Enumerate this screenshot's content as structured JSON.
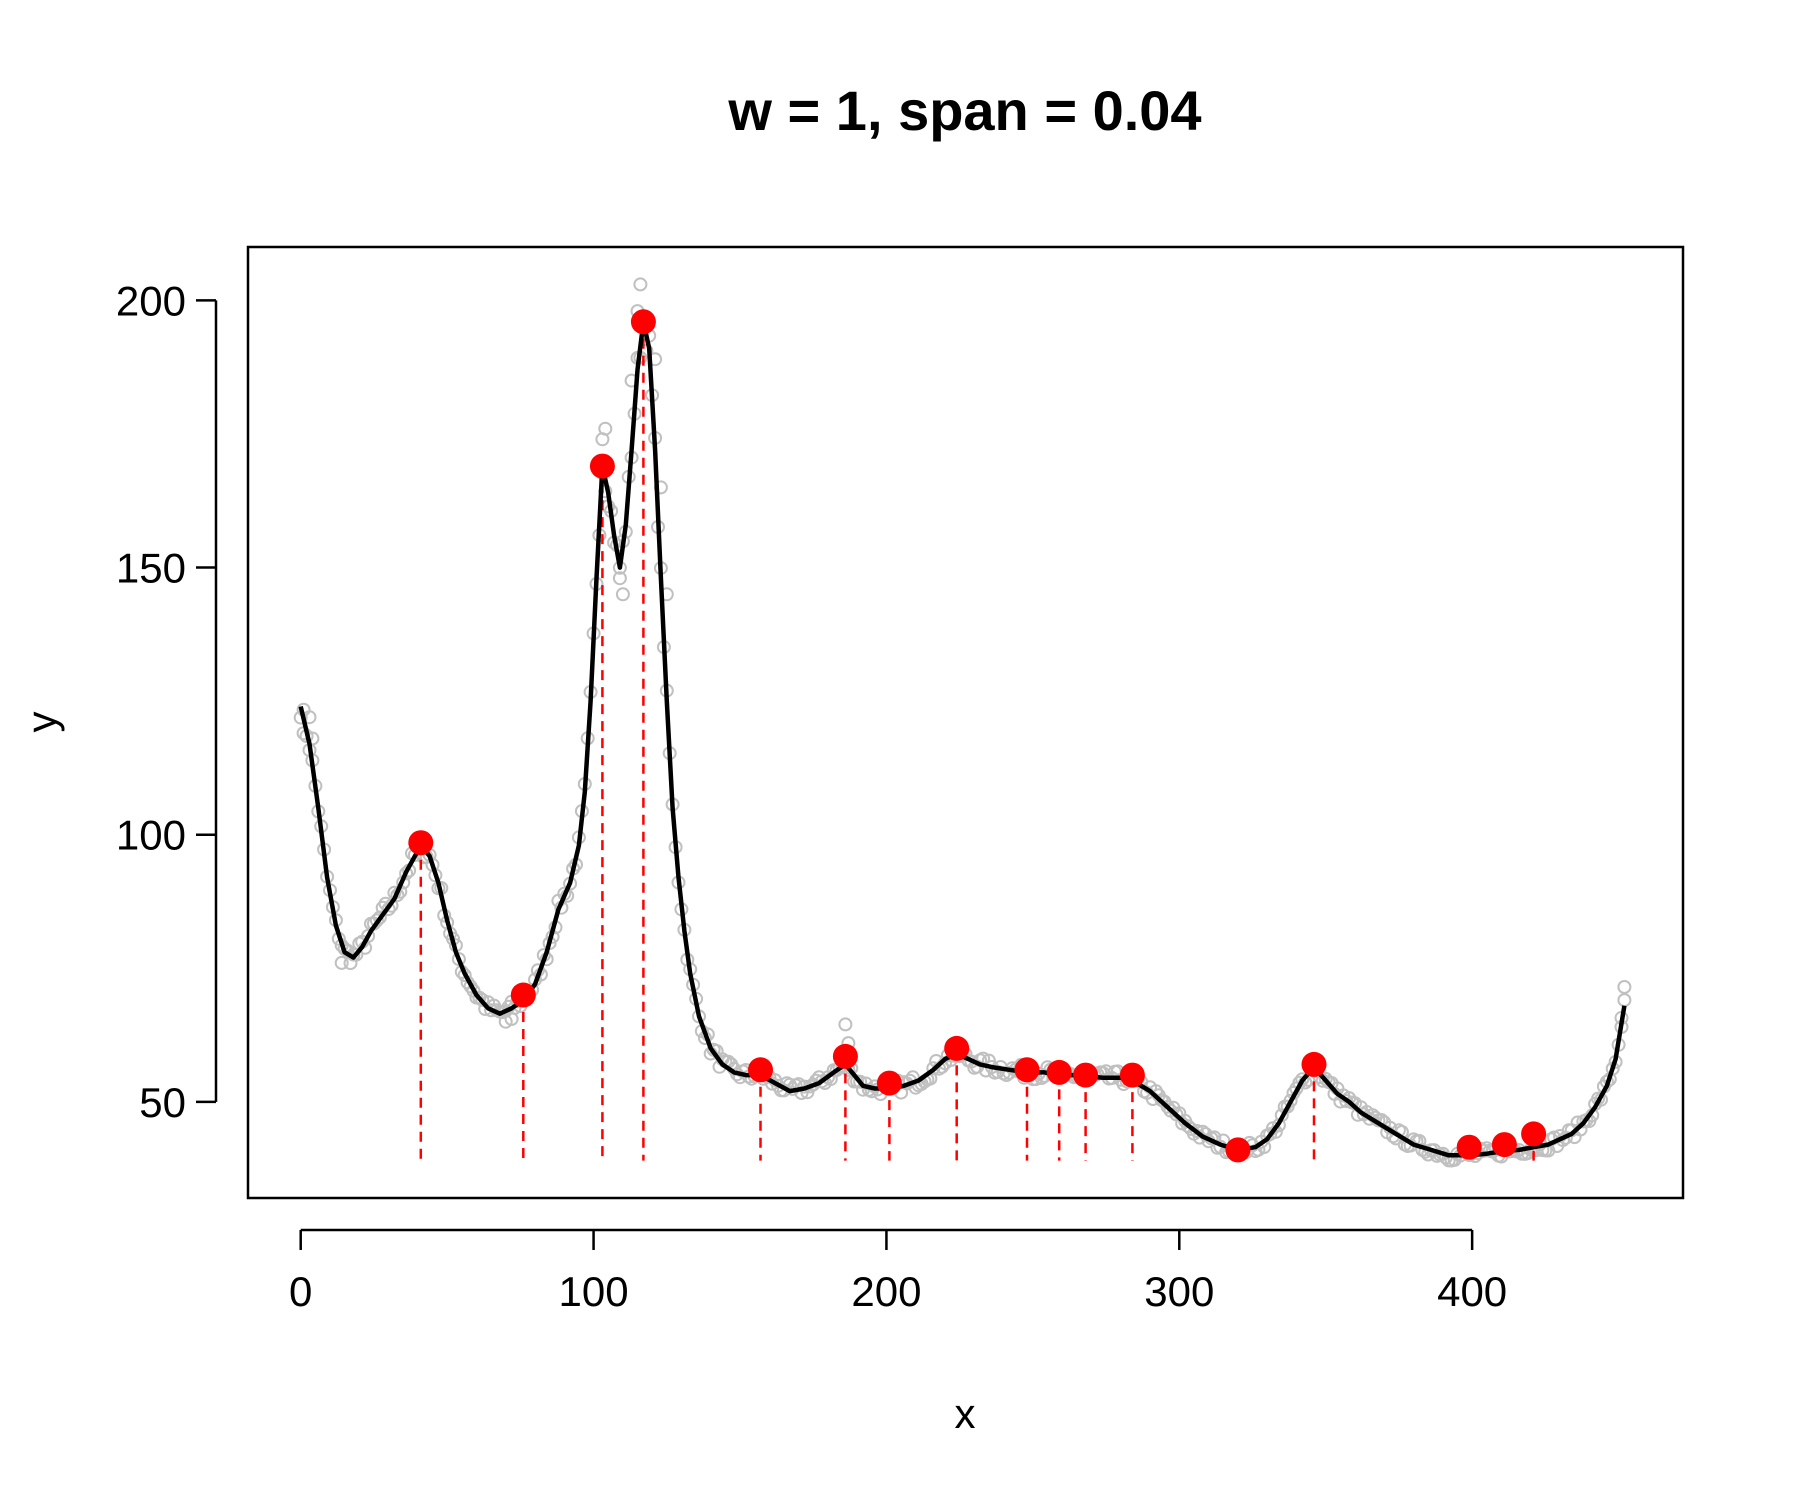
{
  "chart_data": {
    "type": "scatter",
    "title": "w = 1, span = 0.04",
    "xlabel": "x",
    "ylabel": "y",
    "xlim": [
      -18,
      472
    ],
    "ylim": [
      32,
      210
    ],
    "xticks": [
      0,
      100,
      200,
      300,
      400
    ],
    "yticks": [
      50,
      100,
      150,
      200
    ],
    "x_tick_labels": [
      "0",
      "100",
      "200",
      "300",
      "400"
    ],
    "y_tick_labels": [
      "50",
      "100",
      "150",
      "200"
    ],
    "grid": false,
    "legend": "none",
    "colors": {
      "points": "#c0c0c0",
      "smooth": "#000000",
      "maxima": "#ff0000",
      "drop_lines": "#ff0000"
    },
    "smooth_curve": [
      [
        0,
        124
      ],
      [
        3,
        117
      ],
      [
        6,
        105
      ],
      [
        9,
        92
      ],
      [
        12,
        83
      ],
      [
        15,
        78
      ],
      [
        18,
        77
      ],
      [
        21,
        79
      ],
      [
        24,
        82
      ],
      [
        28,
        85
      ],
      [
        32,
        88
      ],
      [
        36,
        93
      ],
      [
        41,
        98
      ],
      [
        44,
        96
      ],
      [
        47,
        91
      ],
      [
        50,
        84
      ],
      [
        53,
        78
      ],
      [
        56,
        74
      ],
      [
        60,
        70
      ],
      [
        64,
        67.5
      ],
      [
        68,
        66.5
      ],
      [
        72,
        67.5
      ],
      [
        76,
        69
      ],
      [
        80,
        72
      ],
      [
        84,
        78
      ],
      [
        88,
        86
      ],
      [
        92,
        91
      ],
      [
        95,
        98
      ],
      [
        97,
        108
      ],
      [
        99,
        125
      ],
      [
        101,
        148
      ],
      [
        103,
        169
      ],
      [
        105,
        164
      ],
      [
        107,
        156
      ],
      [
        109,
        150
      ],
      [
        111,
        158
      ],
      [
        113,
        172
      ],
      [
        115,
        187
      ],
      [
        117,
        196
      ],
      [
        119,
        191
      ],
      [
        121,
        172
      ],
      [
        123,
        148
      ],
      [
        125,
        125
      ],
      [
        127,
        105
      ],
      [
        129,
        92
      ],
      [
        131,
        82
      ],
      [
        133,
        74
      ],
      [
        136,
        66
      ],
      [
        140,
        60
      ],
      [
        144,
        57
      ],
      [
        148,
        55.5
      ],
      [
        152,
        55
      ],
      [
        157,
        55
      ],
      [
        162,
        53.5
      ],
      [
        167,
        52
      ],
      [
        172,
        52.5
      ],
      [
        177,
        53.5
      ],
      [
        182,
        55.5
      ],
      [
        186,
        57
      ],
      [
        189,
        55
      ],
      [
        192,
        53
      ],
      [
        196,
        52.5
      ],
      [
        201,
        52.5
      ],
      [
        206,
        53
      ],
      [
        211,
        54
      ],
      [
        216,
        56
      ],
      [
        220,
        58
      ],
      [
        224,
        59
      ],
      [
        228,
        58
      ],
      [
        232,
        57
      ],
      [
        236,
        56.5
      ],
      [
        242,
        56
      ],
      [
        248,
        55.5
      ],
      [
        254,
        55.5
      ],
      [
        259,
        55
      ],
      [
        264,
        55
      ],
      [
        268,
        54.8
      ],
      [
        274,
        54.5
      ],
      [
        280,
        54.5
      ],
      [
        284,
        54
      ],
      [
        290,
        52
      ],
      [
        296,
        49
      ],
      [
        302,
        46
      ],
      [
        308,
        43.5
      ],
      [
        314,
        42
      ],
      [
        320,
        41
      ],
      [
        326,
        41.5
      ],
      [
        330,
        43
      ],
      [
        334,
        46
      ],
      [
        338,
        50
      ],
      [
        342,
        54
      ],
      [
        346,
        56.5
      ],
      [
        350,
        54
      ],
      [
        354,
        51.5
      ],
      [
        358,
        50
      ],
      [
        362,
        48
      ],
      [
        368,
        46
      ],
      [
        374,
        44
      ],
      [
        380,
        42
      ],
      [
        386,
        41
      ],
      [
        392,
        40
      ],
      [
        399,
        40
      ],
      [
        405,
        40.3
      ],
      [
        411,
        40.8
      ],
      [
        416,
        41
      ],
      [
        421,
        41.5
      ],
      [
        426,
        42
      ],
      [
        430,
        43
      ],
      [
        434,
        44
      ],
      [
        438,
        46
      ],
      [
        442,
        49
      ],
      [
        446,
        53
      ],
      [
        449,
        58
      ],
      [
        452,
        68
      ]
    ],
    "maxima": [
      {
        "x": 41,
        "y": 98.5
      },
      {
        "x": 76,
        "y": 70
      },
      {
        "x": 103,
        "y": 169
      },
      {
        "x": 117,
        "y": 196
      },
      {
        "x": 157,
        "y": 56
      },
      {
        "x": 186,
        "y": 58.5
      },
      {
        "x": 201,
        "y": 53.5
      },
      {
        "x": 224,
        "y": 60
      },
      {
        "x": 248,
        "y": 56
      },
      {
        "x": 259,
        "y": 55.5
      },
      {
        "x": 268,
        "y": 55
      },
      {
        "x": 284,
        "y": 55
      },
      {
        "x": 320,
        "y": 41
      },
      {
        "x": 346,
        "y": 57
      },
      {
        "x": 399,
        "y": 41.5
      },
      {
        "x": 411,
        "y": 42
      },
      {
        "x": 421,
        "y": 44
      }
    ],
    "drop_line_bottom_y": 39,
    "outlier_points": [
      [
        1,
        119
      ],
      [
        3,
        122
      ],
      [
        4,
        118
      ],
      [
        116,
        203
      ],
      [
        104,
        176
      ],
      [
        103,
        174
      ],
      [
        110,
        145
      ],
      [
        109,
        148
      ],
      [
        186,
        64.5
      ],
      [
        187,
        61
      ],
      [
        452,
        71.5
      ],
      [
        451,
        64
      ],
      [
        14,
        76
      ],
      [
        70,
        65
      ],
      [
        72,
        65.5
      ],
      [
        113,
        185
      ],
      [
        115,
        198
      ],
      [
        121,
        189
      ],
      [
        123,
        165
      ],
      [
        125,
        145
      ]
    ]
  }
}
